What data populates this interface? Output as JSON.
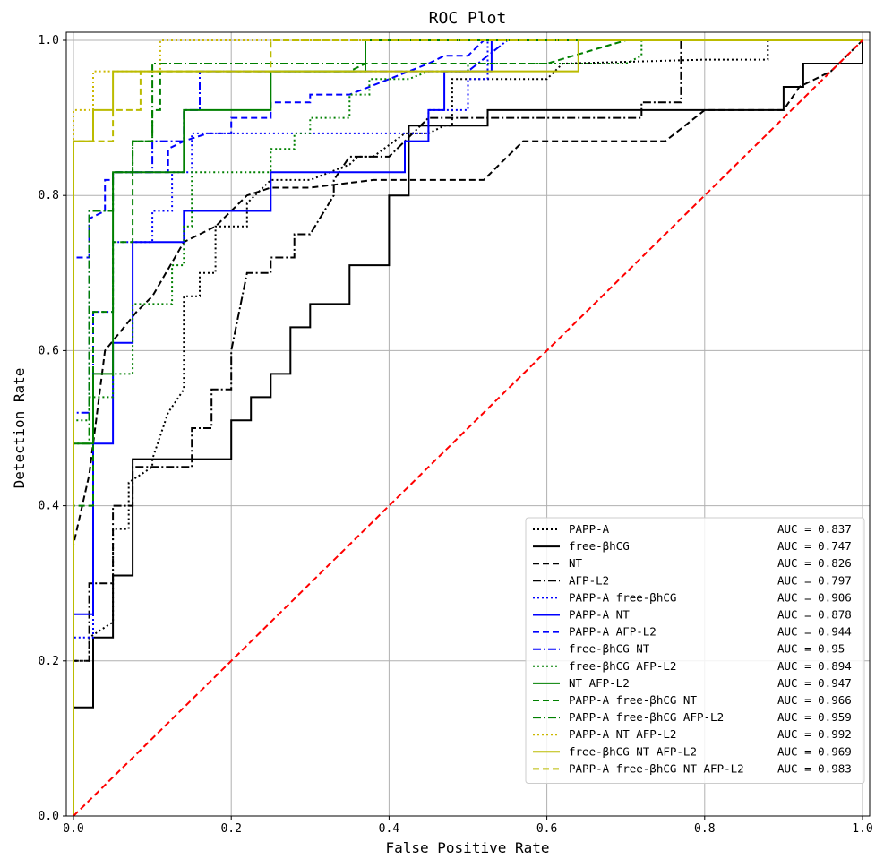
{
  "chart_data": {
    "type": "line",
    "title": "ROC Plot",
    "xlabel": "False Positive Rate",
    "ylabel": "Detection Rate",
    "xlim": [
      0.0,
      1.0
    ],
    "ylim": [
      0.0,
      1.0
    ],
    "xticks": [
      "0.0",
      "0.2",
      "0.4",
      "0.6",
      "0.8",
      "1.0"
    ],
    "yticks": [
      "0.0",
      "0.2",
      "0.4",
      "0.6",
      "0.8",
      "1.0"
    ],
    "grid": true,
    "legend_position": "lower-right",
    "diagonal": {
      "x": [
        0,
        1
      ],
      "y": [
        0,
        1
      ],
      "color": "#ff0000",
      "dash": "dashed"
    },
    "series": [
      {
        "name": "PAPP-A",
        "auc_label": "AUC = 0.837",
        "color": "#000000",
        "dash": "dotted",
        "x": [
          0.0,
          0.0,
          0.02,
          0.02,
          0.05,
          0.05,
          0.07,
          0.07,
          0.1,
          0.1,
          0.12,
          0.14,
          0.14,
          0.16,
          0.16,
          0.18,
          0.18,
          0.22,
          0.22,
          0.25,
          0.3,
          0.35,
          0.36,
          0.38,
          0.42,
          0.45,
          0.47,
          0.48,
          0.48,
          0.5,
          0.5,
          0.6,
          0.62,
          0.8,
          0.88,
          0.88,
          1.0
        ],
        "y": [
          0.0,
          0.2,
          0.2,
          0.23,
          0.25,
          0.37,
          0.37,
          0.43,
          0.45,
          0.46,
          0.52,
          0.55,
          0.67,
          0.67,
          0.7,
          0.7,
          0.76,
          0.76,
          0.79,
          0.82,
          0.82,
          0.84,
          0.85,
          0.85,
          0.88,
          0.88,
          0.89,
          0.89,
          0.95,
          0.95,
          0.95,
          0.95,
          0.97,
          0.975,
          0.975,
          1.0,
          1.0
        ]
      },
      {
        "name": "free-βhCG",
        "auc_label": "AUC = 0.747",
        "color": "#000000",
        "dash": "solid",
        "x": [
          0.0,
          0.0,
          0.025,
          0.025,
          0.05,
          0.05,
          0.075,
          0.075,
          0.2,
          0.2,
          0.225,
          0.225,
          0.25,
          0.25,
          0.275,
          0.275,
          0.3,
          0.3,
          0.35,
          0.35,
          0.4,
          0.4,
          0.425,
          0.425,
          0.45,
          0.475,
          0.525,
          0.525,
          0.55,
          0.9,
          0.9,
          0.925,
          0.925,
          1.0,
          1.0
        ],
        "y": [
          0.0,
          0.14,
          0.14,
          0.23,
          0.23,
          0.31,
          0.31,
          0.46,
          0.46,
          0.51,
          0.51,
          0.54,
          0.54,
          0.57,
          0.57,
          0.63,
          0.63,
          0.66,
          0.66,
          0.71,
          0.71,
          0.8,
          0.8,
          0.89,
          0.89,
          0.89,
          0.89,
          0.91,
          0.91,
          0.91,
          0.94,
          0.94,
          0.97,
          0.97,
          1.0
        ]
      },
      {
        "name": "NT",
        "auc_label": "AUC = 0.826",
        "color": "#000000",
        "dash": "dashed",
        "x": [
          0.0,
          0.0,
          0.02,
          0.04,
          0.08,
          0.1,
          0.14,
          0.18,
          0.22,
          0.25,
          0.3,
          0.38,
          0.4,
          0.48,
          0.52,
          0.55,
          0.57,
          0.75,
          0.8,
          0.9,
          0.92,
          0.96,
          1.0
        ],
        "y": [
          0.0,
          0.35,
          0.44,
          0.6,
          0.65,
          0.67,
          0.74,
          0.76,
          0.8,
          0.81,
          0.81,
          0.82,
          0.82,
          0.82,
          0.82,
          0.85,
          0.87,
          0.87,
          0.91,
          0.91,
          0.94,
          0.96,
          1.0
        ]
      },
      {
        "name": "AFP-L2",
        "auc_label": "AUC = 0.797",
        "color": "#000000",
        "dash": "dashdot",
        "x": [
          0.0,
          0.0,
          0.02,
          0.02,
          0.05,
          0.05,
          0.075,
          0.075,
          0.1,
          0.15,
          0.15,
          0.175,
          0.175,
          0.2,
          0.2,
          0.22,
          0.25,
          0.25,
          0.28,
          0.28,
          0.3,
          0.33,
          0.33,
          0.35,
          0.4,
          0.45,
          0.5,
          0.72,
          0.72,
          0.77,
          0.77,
          1.0
        ],
        "y": [
          0.0,
          0.2,
          0.2,
          0.3,
          0.3,
          0.4,
          0.4,
          0.45,
          0.45,
          0.45,
          0.5,
          0.5,
          0.55,
          0.55,
          0.6,
          0.7,
          0.7,
          0.72,
          0.72,
          0.75,
          0.75,
          0.8,
          0.82,
          0.85,
          0.85,
          0.9,
          0.9,
          0.9,
          0.92,
          0.92,
          1.0,
          1.0
        ]
      },
      {
        "name": "PAPP-A free-βhCG",
        "auc_label": "AUC = 0.906",
        "color": "#0000ff",
        "dash": "dotted",
        "x": [
          0.0,
          0.0,
          0.025,
          0.025,
          0.05,
          0.05,
          0.1,
          0.1,
          0.125,
          0.125,
          0.15,
          0.15,
          0.2,
          0.35,
          0.425,
          0.45,
          0.45,
          0.475,
          0.5,
          0.5,
          0.525,
          0.525,
          1.0
        ],
        "y": [
          0.0,
          0.23,
          0.23,
          0.65,
          0.65,
          0.74,
          0.74,
          0.78,
          0.78,
          0.83,
          0.83,
          0.88,
          0.88,
          0.88,
          0.88,
          0.88,
          0.91,
          0.91,
          0.91,
          0.95,
          0.95,
          1.0,
          1.0
        ]
      },
      {
        "name": "PAPP-A NT",
        "auc_label": "AUC = 0.878",
        "color": "#0000ff",
        "dash": "solid",
        "x": [
          0.0,
          0.0,
          0.025,
          0.025,
          0.05,
          0.05,
          0.075,
          0.075,
          0.14,
          0.14,
          0.25,
          0.25,
          0.3,
          0.3,
          0.35,
          0.35,
          0.42,
          0.42,
          0.45,
          0.45,
          0.47,
          0.47,
          0.53,
          0.53,
          1.0
        ],
        "y": [
          0.0,
          0.26,
          0.26,
          0.48,
          0.48,
          0.61,
          0.61,
          0.74,
          0.74,
          0.78,
          0.78,
          0.83,
          0.83,
          0.83,
          0.83,
          0.83,
          0.83,
          0.87,
          0.87,
          0.91,
          0.91,
          0.96,
          0.96,
          1.0,
          1.0
        ]
      },
      {
        "name": "PAPP-A AFP-L2",
        "auc_label": "AUC = 0.944",
        "color": "#0000ff",
        "dash": "dashed",
        "x": [
          0.0,
          0.0,
          0.02,
          0.02,
          0.04,
          0.04,
          0.05,
          0.05,
          0.12,
          0.12,
          0.14,
          0.17,
          0.2,
          0.2,
          0.25,
          0.25,
          0.3,
          0.3,
          0.35,
          0.4,
          0.45,
          0.47,
          0.5,
          0.52,
          0.6,
          1.0
        ],
        "y": [
          0.0,
          0.72,
          0.72,
          0.77,
          0.78,
          0.82,
          0.82,
          0.83,
          0.83,
          0.86,
          0.87,
          0.88,
          0.88,
          0.9,
          0.9,
          0.92,
          0.92,
          0.93,
          0.93,
          0.95,
          0.97,
          0.98,
          0.98,
          1.0,
          1.0,
          1.0
        ]
      },
      {
        "name": "free-βhCG NT",
        "auc_label": "AUC = 0.95",
        "color": "#0000ff",
        "dash": "dashdot",
        "x": [
          0.0,
          0.0,
          0.02,
          0.02,
          0.05,
          0.05,
          0.1,
          0.1,
          0.14,
          0.14,
          0.16,
          0.16,
          0.2,
          0.3,
          0.35,
          0.5,
          0.55,
          1.0
        ],
        "y": [
          0.0,
          0.52,
          0.52,
          0.78,
          0.78,
          0.83,
          0.83,
          0.87,
          0.87,
          0.91,
          0.91,
          0.96,
          0.96,
          0.96,
          0.96,
          0.96,
          1.0,
          1.0
        ]
      },
      {
        "name": "free-βhCG AFP-L2",
        "auc_label": "AUC = 0.894",
        "color": "#008000",
        "dash": "dotted",
        "x": [
          0.0,
          0.0,
          0.02,
          0.02,
          0.05,
          0.05,
          0.075,
          0.075,
          0.125,
          0.125,
          0.14,
          0.14,
          0.15,
          0.15,
          0.175,
          0.22,
          0.25,
          0.25,
          0.28,
          0.28,
          0.3,
          0.3,
          0.35,
          0.35,
          0.375,
          0.375,
          0.4,
          0.425,
          0.45,
          0.475,
          0.5,
          0.5,
          0.55,
          0.6,
          0.7,
          0.72,
          0.72,
          1.0
        ],
        "y": [
          0.0,
          0.51,
          0.51,
          0.54,
          0.54,
          0.57,
          0.57,
          0.66,
          0.66,
          0.71,
          0.71,
          0.76,
          0.76,
          0.83,
          0.83,
          0.83,
          0.83,
          0.86,
          0.86,
          0.88,
          0.88,
          0.9,
          0.9,
          0.93,
          0.93,
          0.95,
          0.95,
          0.95,
          0.96,
          0.96,
          0.96,
          0.97,
          0.97,
          0.97,
          0.97,
          0.98,
          1.0,
          1.0
        ]
      },
      {
        "name": "NT AFP-L2",
        "auc_label": "AUC = 0.947",
        "color": "#008000",
        "dash": "solid",
        "x": [
          0.0,
          0.0,
          0.025,
          0.025,
          0.05,
          0.05,
          0.075,
          0.075,
          0.14,
          0.14,
          0.25,
          0.25,
          0.3,
          0.3,
          0.37,
          0.37,
          0.64,
          0.64,
          1.0
        ],
        "y": [
          0.0,
          0.48,
          0.48,
          0.57,
          0.57,
          0.83,
          0.83,
          0.83,
          0.83,
          0.91,
          0.91,
          0.96,
          0.96,
          0.96,
          0.96,
          1.0,
          1.0,
          1.0,
          1.0
        ]
      },
      {
        "name": "PAPP-A free-βhCG NT",
        "auc_label": "AUC = 0.966",
        "color": "#008000",
        "dash": "dashed",
        "x": [
          0.0,
          0.0,
          0.025,
          0.025,
          0.05,
          0.05,
          0.075,
          0.075,
          0.1,
          0.1,
          0.11,
          0.11,
          0.15,
          0.3,
          0.35,
          0.37,
          0.4,
          0.45,
          0.6,
          0.7,
          0.75,
          1.0
        ],
        "y": [
          0.0,
          0.4,
          0.4,
          0.65,
          0.65,
          0.74,
          0.74,
          0.87,
          0.87,
          0.91,
          0.91,
          0.96,
          0.96,
          0.96,
          0.96,
          0.97,
          0.97,
          0.97,
          0.97,
          1.0,
          1.0,
          1.0
        ]
      },
      {
        "name": "PAPP-A free-βhCG AFP-L2",
        "auc_label": "AUC = 0.959",
        "color": "#008000",
        "dash": "dashdot",
        "x": [
          0.0,
          0.0,
          0.02,
          0.02,
          0.05,
          0.05,
          0.075,
          0.075,
          0.1,
          0.1,
          0.3,
          0.3,
          0.37,
          0.37,
          1.0
        ],
        "y": [
          0.0,
          0.48,
          0.48,
          0.78,
          0.78,
          0.83,
          0.83,
          0.87,
          0.87,
          0.97,
          0.97,
          0.97,
          0.97,
          1.0,
          1.0
        ]
      },
      {
        "name": "PAPP-A NT AFP-L2",
        "auc_label": "AUC = 0.992",
        "color": "#ccb800",
        "dash": "dotted",
        "x": [
          0.0,
          0.0,
          0.025,
          0.025,
          0.05,
          0.05,
          0.11,
          0.11,
          1.0
        ],
        "y": [
          0.0,
          0.91,
          0.91,
          0.96,
          0.96,
          0.96,
          0.96,
          1.0,
          1.0
        ]
      },
      {
        "name": "free-βhCG NT AFP-L2",
        "auc_label": "AUC = 0.969",
        "color": "#bbbb00",
        "dash": "solid",
        "x": [
          0.0,
          0.0,
          0.025,
          0.025,
          0.05,
          0.05,
          0.64,
          0.64,
          1.0
        ],
        "y": [
          0.0,
          0.87,
          0.87,
          0.91,
          0.91,
          0.96,
          0.96,
          1.0,
          1.0
        ]
      },
      {
        "name": "PAPP-A free-βhCG NT AFP-L2",
        "auc_label": "AUC = 0.983",
        "color": "#bbbb00",
        "dash": "dashed",
        "x": [
          0.0,
          0.0,
          0.025,
          0.025,
          0.05,
          0.05,
          0.085,
          0.085,
          0.25,
          0.25,
          1.0
        ],
        "y": [
          0.0,
          0.87,
          0.87,
          0.87,
          0.87,
          0.91,
          0.91,
          0.96,
          0.96,
          1.0,
          1.0
        ]
      }
    ]
  }
}
